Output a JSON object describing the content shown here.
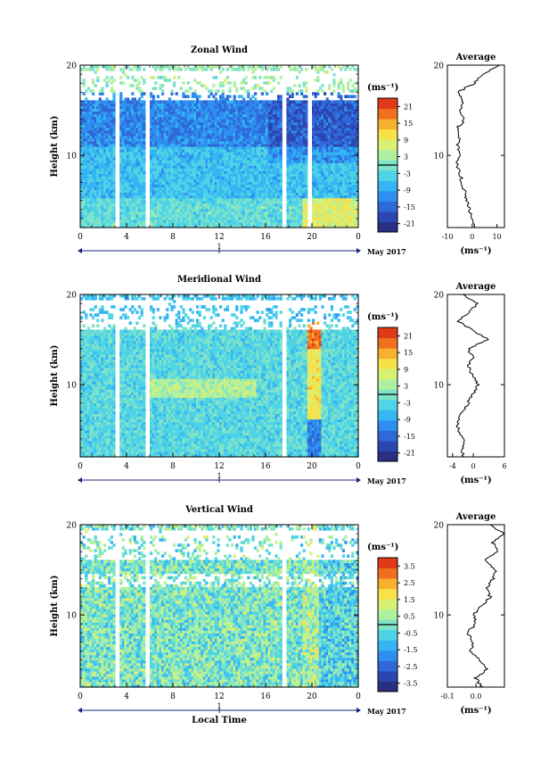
{
  "figure": {
    "date_label": "May 2017",
    "day_label": "1",
    "xlabel": "Local Time",
    "ylabel": "Height (km)",
    "unit": "(ms⁻¹)",
    "profile_title": "Average"
  },
  "panels": [
    {
      "title": "Zonal Wind",
      "colorbar_ticks": [
        "21",
        "15",
        "9",
        "3",
        "-3",
        "-9",
        "-15",
        "-21"
      ],
      "profile_ticks": [
        "-10",
        "0",
        "10"
      ]
    },
    {
      "title": "Meridional Wind",
      "colorbar_ticks": [
        "21",
        "15",
        "9",
        "3",
        "-3",
        "-9",
        "-15",
        "-21"
      ],
      "profile_ticks": [
        "-4",
        "0",
        "6"
      ]
    },
    {
      "title": "Vertical Wind",
      "colorbar_ticks": [
        "3.5",
        "2.5",
        "1.5",
        "0.5",
        "-0.5",
        "-1.5",
        "-2.5",
        "-3.5"
      ],
      "profile_ticks": [
        "-0.1",
        "0.0",
        ""
      ]
    }
  ],
  "chart_data": [
    {
      "type": "heatmap",
      "title": "Zonal Wind",
      "xlabel": "",
      "ylabel": "Height (km)",
      "x_ticks": [
        "0",
        "4",
        "8",
        "12",
        "16",
        "20",
        "0"
      ],
      "y_ticks": [
        "10",
        "20"
      ],
      "xlim_hours": [
        0,
        24
      ],
      "ylim_km": [
        2,
        20
      ],
      "colorbar": {
        "label": "(ms⁻¹)",
        "range": [
          -24,
          24
        ],
        "ticks": [
          21,
          15,
          9,
          3,
          -3,
          -9,
          -15,
          -21
        ]
      },
      "data_gaps_hours": [
        3.2,
        5.8,
        17.6,
        19.8
      ],
      "profile": {
        "title": "Average",
        "xlim": [
          -10,
          13
        ],
        "x_ticks": [
          -10,
          0,
          10
        ],
        "heights": [
          2,
          3,
          4,
          5,
          6,
          7,
          8,
          9,
          10,
          11,
          12,
          13,
          14,
          15,
          16,
          17,
          18,
          19,
          20
        ],
        "values": [
          1,
          0,
          -1,
          -2,
          -3,
          -4,
          -5,
          -6,
          -5,
          -6,
          -5,
          -6,
          -3,
          -5,
          -4,
          -6,
          1,
          4,
          11
        ]
      }
    },
    {
      "type": "heatmap",
      "title": "Meridional Wind",
      "xlabel": "",
      "ylabel": "Height (km)",
      "x_ticks": [
        "0",
        "4",
        "8",
        "12",
        "16",
        "20",
        "0"
      ],
      "y_ticks": [
        "10",
        "20"
      ],
      "xlim_hours": [
        0,
        24
      ],
      "ylim_km": [
        2,
        20
      ],
      "colorbar": {
        "label": "(ms⁻¹)",
        "range": [
          -24,
          24
        ],
        "ticks": [
          21,
          15,
          9,
          3,
          -3,
          -9,
          -15,
          -21
        ]
      },
      "data_gaps_hours": [
        3.2,
        5.8,
        17.6
      ],
      "profile": {
        "title": "Average",
        "xlim": [
          -5,
          6
        ],
        "x_ticks": [
          -4,
          0,
          6
        ],
        "heights": [
          2,
          3,
          4,
          5,
          6,
          7,
          8,
          9,
          10,
          11,
          12,
          13,
          14,
          15,
          16,
          17,
          18,
          19,
          20
        ],
        "values": [
          -2,
          -2,
          -2,
          -3,
          -3,
          -2,
          -1,
          0,
          1,
          0,
          -1,
          0,
          -1,
          3,
          0,
          -3,
          -1,
          1,
          -2
        ]
      }
    },
    {
      "type": "heatmap",
      "title": "Vertical Wind",
      "xlabel": "Local Time",
      "ylabel": "Height (km)",
      "x_ticks": [
        "0",
        "4",
        "8",
        "12",
        "16",
        "20",
        "0"
      ],
      "y_ticks": [
        "10",
        "20"
      ],
      "xlim_hours": [
        0,
        24
      ],
      "ylim_km": [
        2,
        20
      ],
      "colorbar": {
        "label": "(ms⁻¹)",
        "range": [
          -4,
          4
        ],
        "ticks": [
          3.5,
          2.5,
          1.5,
          0.5,
          -0.5,
          -1.5,
          -2.5,
          -3.5
        ]
      },
      "data_gaps_hours": [
        3.2,
        5.8,
        17.6
      ],
      "profile": {
        "title": "Average",
        "xlim": [
          -0.1,
          0.1
        ],
        "x_ticks": [
          -0.1,
          0.0
        ],
        "heights": [
          2,
          3,
          4,
          5,
          6,
          7,
          8,
          9,
          10,
          11,
          12,
          13,
          14,
          15,
          16,
          17,
          18,
          19,
          20
        ],
        "values": [
          0.02,
          0.0,
          0.04,
          0.01,
          -0.02,
          -0.01,
          -0.03,
          0.0,
          -0.01,
          0.02,
          0.05,
          0.04,
          0.06,
          0.07,
          0.03,
          0.08,
          0.06,
          0.1,
          0.05
        ]
      }
    }
  ]
}
